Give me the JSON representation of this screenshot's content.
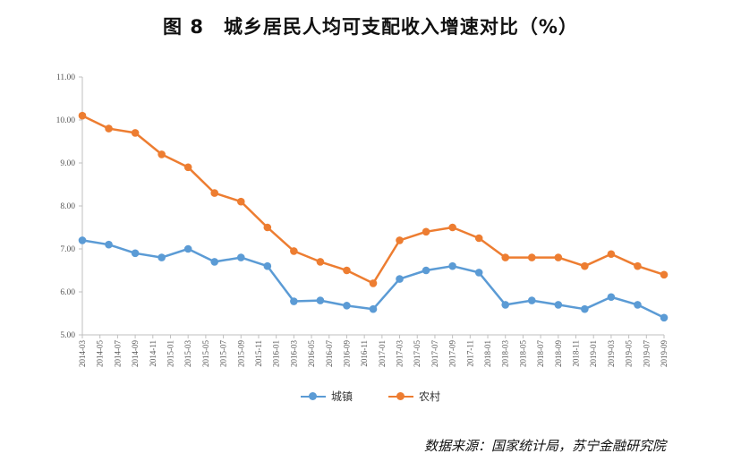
{
  "chart_data": {
    "type": "line",
    "title": "图 8　城乡居民人均可支配收入增速对比（%）",
    "source": "数据来源：国家统计局，苏宁金融研究院",
    "ylim": [
      5.0,
      11.0
    ],
    "yticks": [
      "5.00",
      "6.00",
      "7.00",
      "8.00",
      "9.00",
      "10.00",
      "11.00"
    ],
    "x": [
      "2014-03",
      "2014-05",
      "2014-07",
      "2014-09",
      "2014-11",
      "2015-01",
      "2015-03",
      "2015-05",
      "2015-07",
      "2015-09",
      "2015-11",
      "2016-01",
      "2016-03",
      "2016-05",
      "2016-07",
      "2016-09",
      "2016-11",
      "2017-01",
      "2017-03",
      "2017-05",
      "2017-07",
      "2017-09",
      "2017-11",
      "2018-01",
      "2018-03",
      "2018-05",
      "2018-07",
      "2018-09",
      "2018-11",
      "2019-01",
      "2019-03",
      "2019-05",
      "2019-07",
      "2019-09"
    ],
    "series": [
      {
        "name": "城镇",
        "color": "#5B9BD5",
        "points": [
          {
            "x": "2014-03",
            "y": 7.2
          },
          {
            "x": "2014-06",
            "y": 7.1
          },
          {
            "x": "2014-09",
            "y": 6.9
          },
          {
            "x": "2014-12",
            "y": 6.8
          },
          {
            "x": "2015-03",
            "y": 7.0
          },
          {
            "x": "2015-06",
            "y": 6.7
          },
          {
            "x": "2015-09",
            "y": 6.8
          },
          {
            "x": "2015-12",
            "y": 6.6
          },
          {
            "x": "2016-03",
            "y": 5.78
          },
          {
            "x": "2016-06",
            "y": 5.8
          },
          {
            "x": "2016-09",
            "y": 5.68
          },
          {
            "x": "2016-12",
            "y": 5.6
          },
          {
            "x": "2017-03",
            "y": 6.3
          },
          {
            "x": "2017-06",
            "y": 6.5
          },
          {
            "x": "2017-09",
            "y": 6.6
          },
          {
            "x": "2017-12",
            "y": 6.45
          },
          {
            "x": "2018-03",
            "y": 5.7
          },
          {
            "x": "2018-06",
            "y": 5.8
          },
          {
            "x": "2018-09",
            "y": 5.7
          },
          {
            "x": "2018-12",
            "y": 5.6
          },
          {
            "x": "2019-03",
            "y": 5.88
          },
          {
            "x": "2019-06",
            "y": 5.7
          },
          {
            "x": "2019-09",
            "y": 5.4
          }
        ]
      },
      {
        "name": "农村",
        "color": "#ED7D31",
        "points": [
          {
            "x": "2014-03",
            "y": 10.1
          },
          {
            "x": "2014-06",
            "y": 9.8
          },
          {
            "x": "2014-09",
            "y": 9.7
          },
          {
            "x": "2014-12",
            "y": 9.2
          },
          {
            "x": "2015-03",
            "y": 8.9
          },
          {
            "x": "2015-06",
            "y": 8.3
          },
          {
            "x": "2015-09",
            "y": 8.1
          },
          {
            "x": "2015-12",
            "y": 7.5
          },
          {
            "x": "2016-03",
            "y": 6.95
          },
          {
            "x": "2016-06",
            "y": 6.7
          },
          {
            "x": "2016-09",
            "y": 6.5
          },
          {
            "x": "2016-12",
            "y": 6.2
          },
          {
            "x": "2017-03",
            "y": 7.2
          },
          {
            "x": "2017-06",
            "y": 7.4
          },
          {
            "x": "2017-09",
            "y": 7.5
          },
          {
            "x": "2017-12",
            "y": 7.25
          },
          {
            "x": "2018-03",
            "y": 6.8
          },
          {
            "x": "2018-06",
            "y": 6.8
          },
          {
            "x": "2018-09",
            "y": 6.8
          },
          {
            "x": "2018-12",
            "y": 6.6
          },
          {
            "x": "2019-03",
            "y": 6.88
          },
          {
            "x": "2019-06",
            "y": 6.6
          },
          {
            "x": "2019-09",
            "y": 6.4
          }
        ]
      }
    ],
    "grid": false,
    "legend": "bottom-center"
  }
}
